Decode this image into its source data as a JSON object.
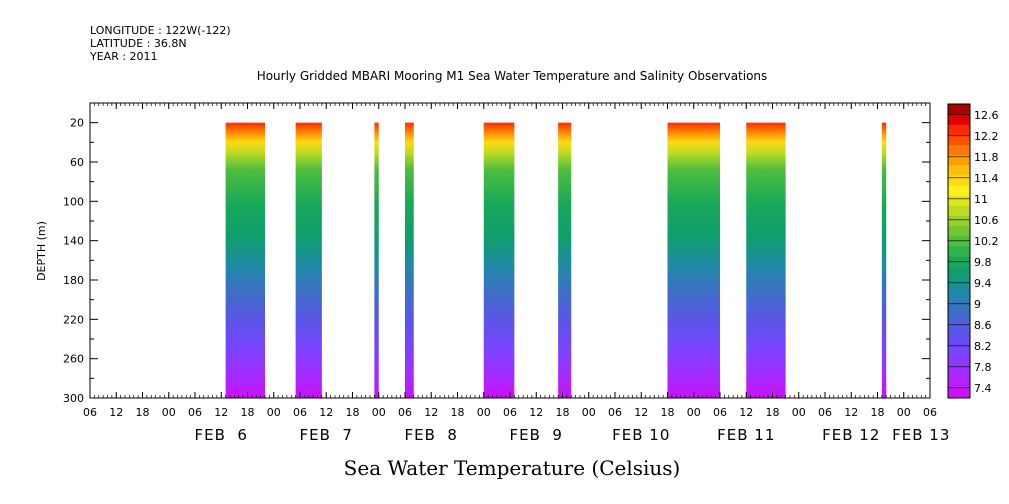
{
  "header": {
    "longitude": "LONGITUDE : 122W(-122)",
    "latitude": "LATITUDE : 36.8N",
    "year": "YEAR : 2011",
    "title": "Hourly Gridded MBARI Mooring M1 Sea Water Temperature and Salinity Observations"
  },
  "chart_data": {
    "type": "heatmap",
    "title": "Hourly Gridded MBARI Mooring M1 Sea Water Temperature and Salinity Observations",
    "xlabel": "",
    "ylabel": "DEPTH (m)",
    "colorbar_label": "Sea Water Temperature (Celsius)",
    "x_start": "FEB 5 06:00",
    "x_end": "FEB 13 06:00",
    "x_tick_labels": [
      "06",
      "12",
      "18",
      "00",
      "06",
      "12",
      "18",
      "00",
      "06",
      "12",
      "18",
      "00",
      "06",
      "12",
      "18",
      "00",
      "06",
      "12",
      "18",
      "00",
      "06",
      "12",
      "18",
      "00",
      "06",
      "12",
      "18",
      "00",
      "06",
      "12",
      "18",
      "00",
      "06"
    ],
    "x_day_labels": [
      "FEB  6",
      "FEB  7",
      "FEB  8",
      "FEB  9",
      "FEB 10",
      "FEB 11",
      "FEB 12",
      "FEB 13"
    ],
    "ylim": [
      300,
      0
    ],
    "y_ticks": [
      20,
      60,
      100,
      140,
      180,
      220,
      260,
      300
    ],
    "colorbar_levels": [
      7.4,
      7.6,
      7.8,
      8.0,
      8.2,
      8.4,
      8.6,
      8.8,
      9.0,
      9.2,
      9.4,
      9.6,
      9.8,
      10.0,
      10.2,
      10.4,
      10.6,
      10.8,
      11.0,
      11.2,
      11.4,
      11.6,
      11.8,
      12.0,
      12.2,
      12.4,
      12.6,
      12.8
    ],
    "colorbar_tick_labels": [
      "7.4",
      "7.8",
      "8.2",
      "8.6",
      "9",
      "9.4",
      "9.8",
      "10.2",
      "10.6",
      "11",
      "11.4",
      "11.8",
      "12.2",
      "12.6"
    ],
    "colorbar_colors": [
      "#cc11ff",
      "#b91cff",
      "#a42bff",
      "#8e3aff",
      "#7a44ff",
      "#6a4cf5",
      "#5a55e8",
      "#4d60d8",
      "#3f6ec8",
      "#2f7cb8",
      "#1f8aa5",
      "#14968a",
      "#0f9e6e",
      "#17a85a",
      "#2eb24a",
      "#4fbd3e",
      "#72c633",
      "#97d02a",
      "#bcdb22",
      "#dfe61c",
      "#fff21a",
      "#ffd912",
      "#ffbf0a",
      "#ff9e05",
      "#ff7a02",
      "#ff5200",
      "#ff2a00",
      "#e00000",
      "#aa0000"
    ],
    "data_segments": [
      {
        "start": "FEB 6 13:00",
        "end": "FEB 6 22:00"
      },
      {
        "start": "FEB 7 05:00",
        "end": "FEB 7 11:00"
      },
      {
        "start": "FEB 7 23:00",
        "end": "FEB 8 00:00"
      },
      {
        "start": "FEB 8 06:00",
        "end": "FEB 8 08:00"
      },
      {
        "start": "FEB 9 00:00",
        "end": "FEB 9 07:00"
      },
      {
        "start": "FEB 9 17:00",
        "end": "FEB 9 20:00"
      },
      {
        "start": "FEB 10 18:00",
        "end": "FEB 11 06:00"
      },
      {
        "start": "FEB 11 12:00",
        "end": "FEB 11 21:00"
      },
      {
        "start": "FEB 12 19:00",
        "end": "FEB 12 20:00"
      }
    ]
  }
}
